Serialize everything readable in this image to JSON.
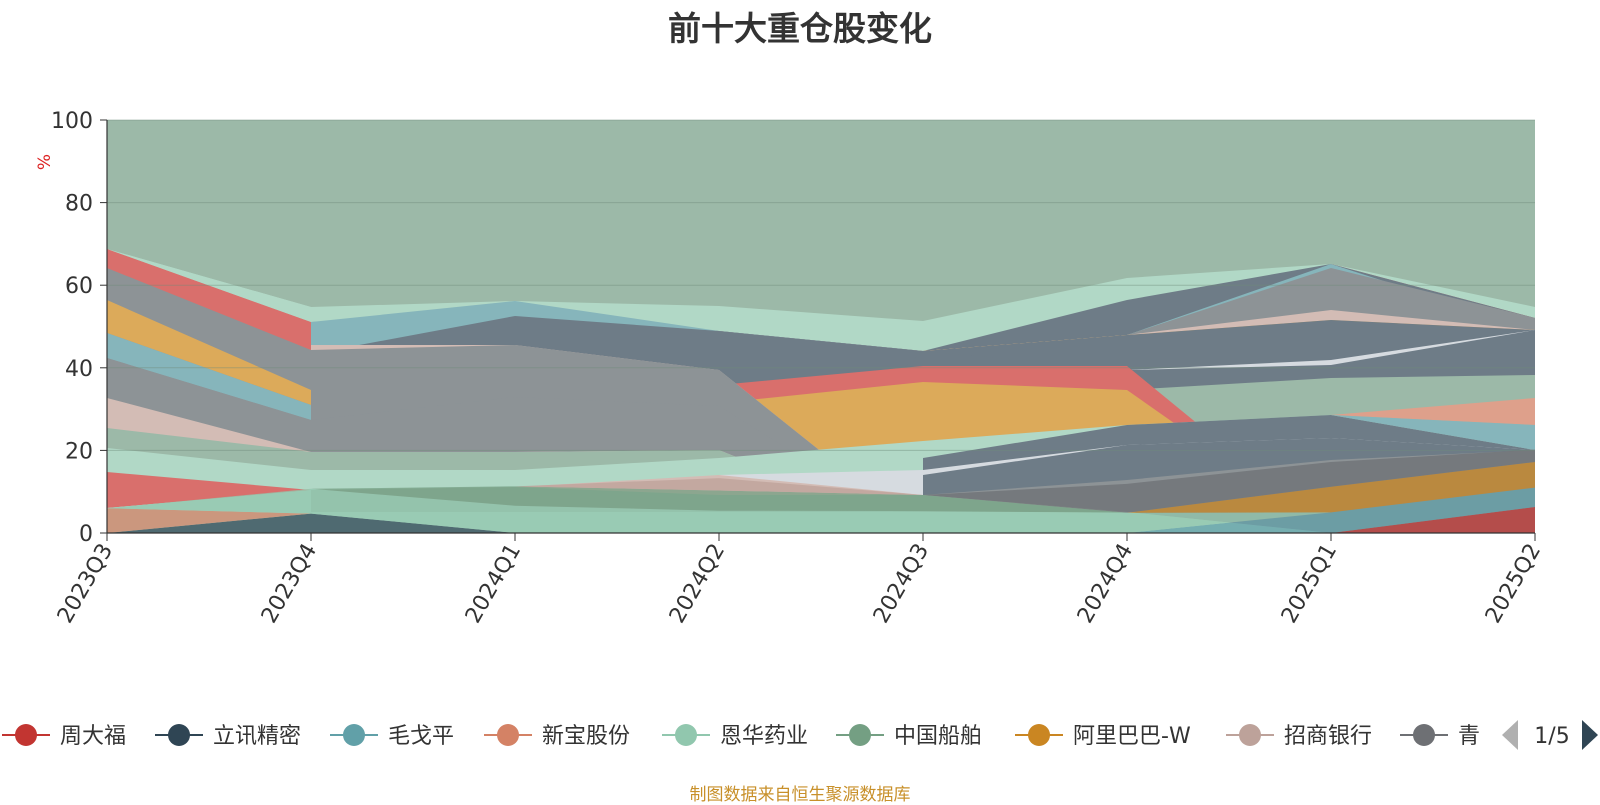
{
  "chart_data": {
    "type": "area",
    "stacked": true,
    "title": "前十大重仓股变化",
    "ylabel": "%",
    "ylim": [
      0,
      100
    ],
    "yticks": [
      0,
      20,
      40,
      60,
      80,
      100
    ],
    "categories": [
      "2023Q3",
      "2023Q4",
      "2024Q1",
      "2024Q2",
      "2024Q3",
      "2024Q4",
      "2025Q1",
      "2025Q2"
    ],
    "grid": true,
    "legend_position": "bottom",
    "series": [
      {
        "name": "周大福",
        "color": "#c23531",
        "values": [
          0,
          0,
          0,
          0,
          0,
          0,
          0,
          6.3
        ]
      },
      {
        "name": "立讯精密",
        "color": "#2f4554",
        "values": [
          0,
          4.7,
          0,
          0,
          0,
          0,
          0,
          0
        ]
      },
      {
        "name": "毛戈平",
        "color": "#61a0a8",
        "values": [
          0,
          0,
          0,
          0,
          0,
          0,
          5.0,
          4.7
        ]
      },
      {
        "name": "新宝股份",
        "color": "#d48265",
        "values": [
          6.0,
          0,
          0,
          0,
          0,
          0,
          0,
          0
        ]
      },
      {
        "name": "恩华药业",
        "color": "#91c7ae",
        "values": [
          0,
          6.0,
          6.6,
          5.4,
          5.3,
          4.9,
          0,
          0
        ]
      },
      {
        "name": "中国船舶",
        "color": "#749f83",
        "values": [
          0,
          0,
          4.7,
          4.9,
          3.9,
          0,
          0,
          0
        ]
      },
      {
        "name": "阿里巴巴-W",
        "color": "#ca8622",
        "values": [
          0,
          0,
          0,
          0,
          0,
          0,
          6.2,
          6.2
        ]
      },
      {
        "name": "招商银行",
        "color": "#bda29a",
        "values": [
          0,
          0,
          0,
          3.0,
          0,
          0,
          0,
          0
        ]
      },
      {
        "name": "青岛啤酒",
        "color": "#6e7074",
        "values": [
          0,
          0,
          0,
          0,
          0,
          7.0,
          6.0,
          3.0
        ]
      }
    ]
  },
  "legend": {
    "visible_items": [
      {
        "label": "周大福",
        "color": "#c23531"
      },
      {
        "label": "立讯精密",
        "color": "#2f4554"
      },
      {
        "label": "毛戈平",
        "color": "#61a0a8"
      },
      {
        "label": "新宝股份",
        "color": "#d48265"
      },
      {
        "label": "恩华药业",
        "color": "#91c7ae"
      },
      {
        "label": "中国船舶",
        "color": "#749f83"
      },
      {
        "label": "阿里巴巴-W",
        "color": "#ca8622"
      },
      {
        "label": "招商银行",
        "color": "#bda29a"
      },
      {
        "label": "青",
        "color": "#6e7074"
      }
    ],
    "page_indicator": "1/5"
  },
  "source_note": "制图数据来自恒生聚源数据库"
}
